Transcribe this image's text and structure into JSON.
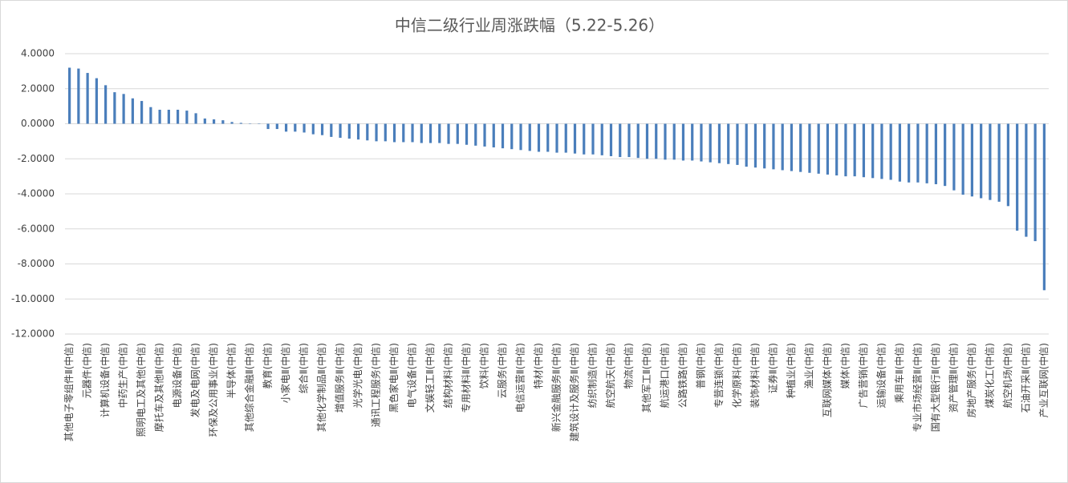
{
  "chart_data": {
    "type": "bar",
    "title": "中信二级行业周涨跌幅（5.22-5.26）",
    "color": "#4a7ebb",
    "grid": true,
    "ylim": [
      -12,
      4
    ],
    "yticks": [
      {
        "value": 4,
        "label": "4.0000"
      },
      {
        "value": 2,
        "label": "2.0000"
      },
      {
        "value": 0,
        "label": "0.0000"
      },
      {
        "value": -2,
        "label": "-2.0000"
      },
      {
        "value": -4,
        "label": "-4.0000"
      },
      {
        "value": -6,
        "label": "-6.0000"
      },
      {
        "value": -8,
        "label": "-8.0000"
      },
      {
        "value": -10,
        "label": "-10.0000"
      },
      {
        "value": -12,
        "label": "-12.0000"
      }
    ],
    "categories": [
      "其他电子零组件Ⅱ(中信)",
      null,
      "元器件(中信)",
      null,
      "计算机设备(中信)",
      null,
      "中药生产(中信)",
      null,
      "照明电工及其他(中信)",
      null,
      "摩托车及其他Ⅱ(中信)",
      null,
      "电源设备(中信)",
      null,
      "发电及电网(中信)",
      null,
      "环保及公用事业(中信)",
      null,
      "半导体(中信)",
      null,
      "其他综合金融Ⅱ(中信)",
      null,
      "教育(中信)",
      null,
      "小家电Ⅱ(中信)",
      null,
      "综合Ⅱ(中信)",
      null,
      "其他化学制品Ⅱ(中信)",
      null,
      "增值服务Ⅱ(中信)",
      null,
      "光学光电(中信)",
      null,
      "通讯工程服务(中信)",
      null,
      "黑色家电Ⅱ(中信)",
      null,
      "电气设备(中信)",
      null,
      "文娱轻工Ⅱ(中信)",
      null,
      "结构材料(中信)",
      null,
      "专用材料Ⅱ(中信)",
      null,
      "饮料(中信)",
      null,
      "云服务(中信)",
      null,
      "电信运营Ⅱ(中信)",
      null,
      "特材(中信)",
      null,
      "新兴金融服务Ⅱ(中信)",
      null,
      "建筑设计及服务Ⅱ(中信)",
      null,
      "纺织制造(中信)",
      null,
      "航空航天(中信)",
      null,
      "物流(中信)",
      null,
      "其他军工Ⅱ(中信)",
      null,
      "航运港口(中信)",
      null,
      "公路铁路(中信)",
      null,
      "普钢(中信)",
      null,
      "专营连锁(中信)",
      null,
      "化学原料(中信)",
      null,
      "装饰材料(中信)",
      null,
      "证券Ⅱ(中信)",
      null,
      "种植业(中信)",
      null,
      "渔业(中信)",
      null,
      "互联网媒体(中信)",
      null,
      "媒体(中信)",
      null,
      "广告营销(中信)",
      null,
      "运输设备(中信)",
      null,
      "乘用车Ⅱ(中信)",
      null,
      "专业市场经营Ⅱ(中信)",
      null,
      "国有大型银行Ⅱ(中信)",
      null,
      "资产管理Ⅱ(中信)",
      null,
      "房地产服务(中信)",
      null,
      "煤炭化工(中信)",
      null,
      "航空机场(中信)",
      null,
      "石油开采Ⅱ(中信)",
      null,
      "产业互联网(中信)"
    ],
    "values": [
      3.2,
      3.15,
      2.9,
      2.6,
      2.2,
      1.8,
      1.7,
      1.45,
      1.3,
      0.95,
      0.8,
      0.8,
      0.8,
      0.75,
      0.6,
      0.3,
      0.25,
      0.2,
      0.1,
      0.05,
      0.02,
      -0.02,
      -0.3,
      -0.3,
      -0.45,
      -0.45,
      -0.5,
      -0.6,
      -0.65,
      -0.75,
      -0.8,
      -0.85,
      -0.9,
      -0.95,
      -1.0,
      -1.0,
      -1.05,
      -1.05,
      -1.05,
      -1.1,
      -1.1,
      -1.1,
      -1.15,
      -1.15,
      -1.2,
      -1.25,
      -1.3,
      -1.35,
      -1.4,
      -1.45,
      -1.5,
      -1.55,
      -1.6,
      -1.6,
      -1.65,
      -1.65,
      -1.7,
      -1.75,
      -1.75,
      -1.8,
      -1.85,
      -1.9,
      -1.9,
      -1.95,
      -2.0,
      -2.0,
      -2.05,
      -2.05,
      -2.1,
      -2.1,
      -2.15,
      -2.2,
      -2.25,
      -2.3,
      -2.35,
      -2.45,
      -2.5,
      -2.55,
      -2.6,
      -2.65,
      -2.7,
      -2.75,
      -2.8,
      -2.85,
      -2.9,
      -2.95,
      -3.0,
      -3.0,
      -3.05,
      -3.1,
      -3.15,
      -3.2,
      -3.3,
      -3.35,
      -3.35,
      -3.4,
      -3.45,
      -3.55,
      -3.8,
      -4.05,
      -4.15,
      -4.25,
      -4.35,
      -4.45,
      -4.7,
      -6.1,
      -6.45,
      -6.7,
      -9.5
    ]
  }
}
